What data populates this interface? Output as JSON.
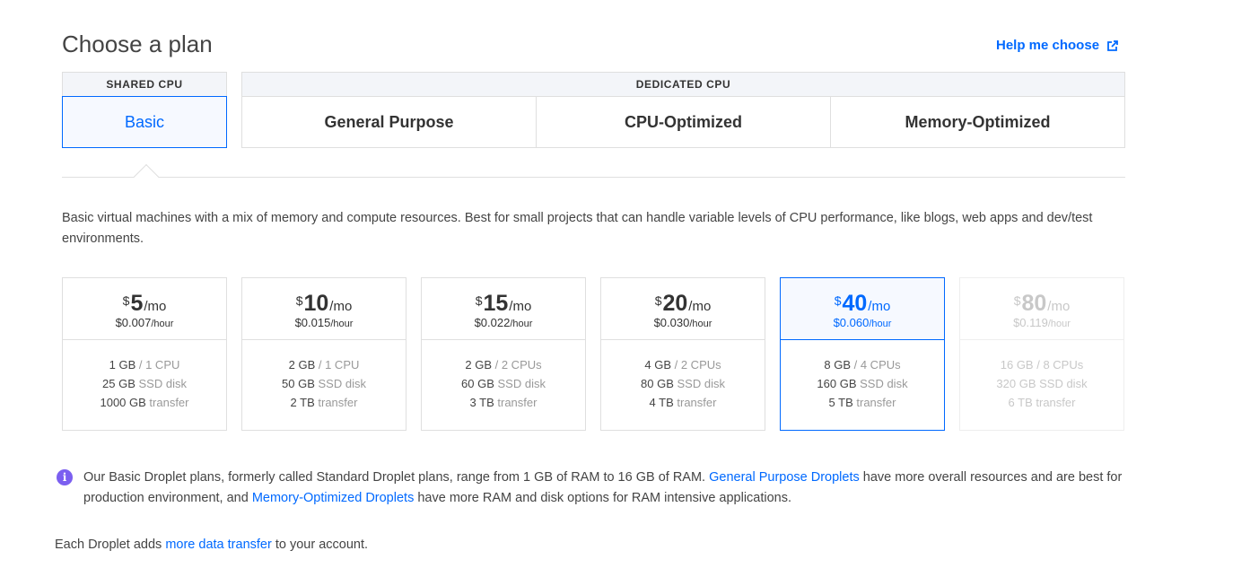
{
  "header": {
    "title": "Choose a plan",
    "help_label": "Help me choose",
    "help_icon": "external-link-icon"
  },
  "groups": {
    "shared": "SHARED CPU",
    "dedicated": "DEDICATED CPU"
  },
  "tabs": [
    {
      "label": "Basic",
      "active": true
    },
    {
      "label": "General Purpose",
      "active": false
    },
    {
      "label": "CPU-Optimized",
      "active": false
    },
    {
      "label": "Memory-Optimized",
      "active": false
    }
  ],
  "description": "Basic virtual machines with a mix of memory and compute resources. Best for small projects that can handle variable levels of CPU performance, like blogs, web apps and dev/test environments.",
  "plans": [
    {
      "currency": "$",
      "amount": "5",
      "period": "/mo",
      "hourly": "$0.007",
      "hourly_unit": "/hour",
      "ram": "1 GB",
      "cpu": " / 1 CPU",
      "disk": "25 GB",
      "disk_label": " SSD disk",
      "transfer": "1000 GB",
      "transfer_label": " transfer"
    },
    {
      "currency": "$",
      "amount": "10",
      "period": "/mo",
      "hourly": "$0.015",
      "hourly_unit": "/hour",
      "ram": "2 GB",
      "cpu": " / 1 CPU",
      "disk": "50 GB",
      "disk_label": " SSD disk",
      "transfer": "2 TB",
      "transfer_label": " transfer"
    },
    {
      "currency": "$",
      "amount": "15",
      "period": "/mo",
      "hourly": "$0.022",
      "hourly_unit": "/hour",
      "ram": "2 GB",
      "cpu": " / 2 CPUs",
      "disk": "60 GB",
      "disk_label": " SSD disk",
      "transfer": "3 TB",
      "transfer_label": " transfer"
    },
    {
      "currency": "$",
      "amount": "20",
      "period": "/mo",
      "hourly": "$0.030",
      "hourly_unit": "/hour",
      "ram": "4 GB",
      "cpu": " / 2 CPUs",
      "disk": "80 GB",
      "disk_label": " SSD disk",
      "transfer": "4 TB",
      "transfer_label": " transfer"
    },
    {
      "currency": "$",
      "amount": "40",
      "period": "/mo",
      "hourly": "$0.060",
      "hourly_unit": "/hour",
      "ram": "8 GB",
      "cpu": " / 4 CPUs",
      "disk": "160 GB",
      "disk_label": " SSD disk",
      "transfer": "5 TB",
      "transfer_label": " transfer"
    },
    {
      "currency": "$",
      "amount": "80",
      "period": "/mo",
      "hourly": "$0.119",
      "hourly_unit": "/hour",
      "ram": "16 GB",
      "cpu": " / 8 CPUs",
      "disk": "320 GB",
      "disk_label": " SSD disk",
      "transfer": "6 TB",
      "transfer_label": " transfer"
    }
  ],
  "selected_plan": "$40/mo",
  "disabled_plan": "$80/mo",
  "info": {
    "icon": "info-icon",
    "text1": "Our Basic Droplet plans, formerly called Standard Droplet plans, range from 1 GB of RAM to 16 GB of RAM. ",
    "link1": "General Purpose Droplets",
    "text2": " have more overall resources and are best for production environment, and ",
    "link2": "Memory-Optimized Droplets",
    "text3": " have more RAM and disk options for RAM intensive applications."
  },
  "footer": {
    "text1": "Each Droplet adds ",
    "link": "more data transfer",
    "text2": " to your account."
  },
  "colors": {
    "accent": "#0069ff",
    "info_icon": "#7b5ff0",
    "border": "#dfdfdf"
  }
}
